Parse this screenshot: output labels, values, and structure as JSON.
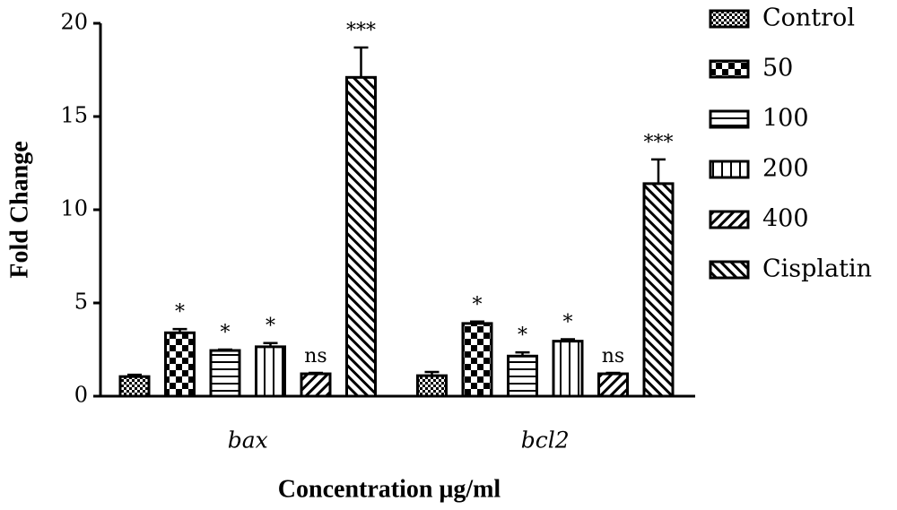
{
  "chart_data": {
    "type": "bar",
    "x_label": "Concentration μg/ml",
    "y_label": "Fold Change",
    "categories": [
      "bax",
      "bcl2"
    ],
    "ylim": [
      0,
      20
    ],
    "yticks": [
      0,
      5,
      10,
      15,
      20
    ],
    "legend": "right",
    "series": [
      {
        "name": "Control",
        "color": "#000000",
        "pattern": "fine-check",
        "values": [
          1.05,
          1.1
        ],
        "errors": [
          0.1,
          0.2
        ],
        "annotations": [
          null,
          null
        ]
      },
      {
        "name": "50",
        "color": "#000000",
        "pattern": "check",
        "values": [
          3.4,
          3.9
        ],
        "errors": [
          0.2,
          0.1
        ],
        "annotations": [
          "*",
          "*"
        ]
      },
      {
        "name": "100",
        "color": "#000000",
        "pattern": "horizontal",
        "values": [
          2.45,
          2.15
        ],
        "errors": [
          0.05,
          0.2
        ],
        "annotations": [
          "*",
          "*"
        ]
      },
      {
        "name": "200",
        "color": "#000000",
        "pattern": "vertical",
        "values": [
          2.65,
          2.95
        ],
        "errors": [
          0.2,
          0.1
        ],
        "annotations": [
          "*",
          "*"
        ]
      },
      {
        "name": "400",
        "color": "#000000",
        "pattern": "diag-up",
        "values": [
          1.2,
          1.2
        ],
        "errors": [
          0.05,
          0.05
        ],
        "annotations": [
          "ns",
          "ns"
        ]
      },
      {
        "name": "Cisplatin",
        "color": "#000000",
        "pattern": "diag-down",
        "values": [
          17.1,
          11.4
        ],
        "errors": [
          1.6,
          1.3
        ],
        "annotations": [
          "***",
          "***"
        ]
      }
    ]
  }
}
